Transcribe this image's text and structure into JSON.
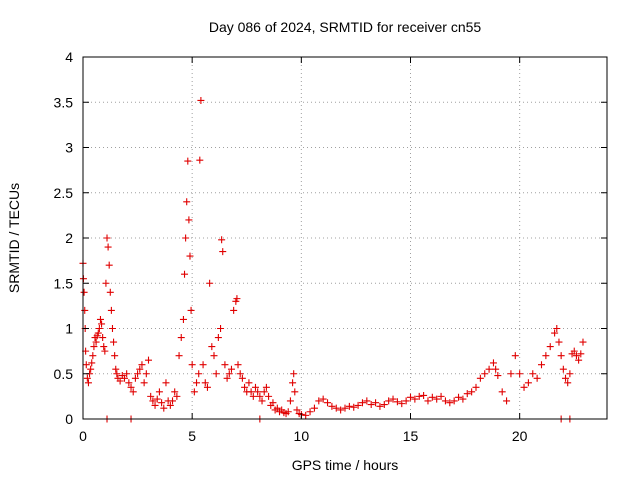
{
  "chart_data": {
    "type": "scatter",
    "title": "Day 086 of 2024, SRMTID for receiver cn55",
    "xlabel": "GPS time / hours",
    "ylabel": "SRMTID / TECUs",
    "xlim": [
      0,
      24
    ],
    "ylim": [
      0,
      4
    ],
    "xticks": [
      0,
      5,
      10,
      15,
      20
    ],
    "xtick_labels": [
      "0",
      "5",
      "10",
      "15",
      "20"
    ],
    "yticks": [
      0,
      0.5,
      1,
      1.5,
      2,
      2.5,
      3,
      3.5,
      4
    ],
    "ytick_labels": [
      "0",
      "0.5",
      "1",
      "1.5",
      "2",
      "2.5",
      "3",
      "3.5",
      "4"
    ],
    "grid": true,
    "marker": "+",
    "color": "#e00000",
    "series": [
      {
        "name": "SRMTID",
        "x": [
          0.0,
          0.02,
          0.05,
          0.08,
          0.1,
          0.12,
          0.15,
          0.2,
          0.25,
          0.3,
          0.35,
          0.4,
          0.45,
          0.5,
          0.55,
          0.6,
          0.65,
          0.7,
          0.75,
          0.8,
          0.85,
          0.9,
          0.95,
          1.0,
          1.05,
          1.1,
          1.15,
          1.2,
          1.25,
          1.3,
          1.35,
          1.4,
          1.45,
          1.5,
          1.55,
          1.6,
          1.7,
          1.8,
          1.9,
          2.0,
          2.1,
          2.2,
          2.3,
          2.4,
          2.5,
          2.6,
          2.7,
          2.8,
          2.9,
          3.0,
          3.1,
          3.2,
          3.3,
          3.4,
          3.5,
          3.6,
          3.7,
          3.8,
          3.9,
          4.0,
          4.1,
          4.2,
          4.3,
          4.4,
          4.5,
          4.6,
          4.65,
          4.7,
          4.75,
          4.8,
          4.85,
          4.9,
          4.95,
          5.0,
          5.1,
          5.2,
          5.3,
          5.35,
          5.4,
          5.5,
          5.6,
          5.7,
          5.8,
          5.9,
          6.0,
          6.1,
          6.2,
          6.3,
          6.35,
          6.4,
          6.5,
          6.6,
          6.7,
          6.8,
          6.9,
          7.0,
          7.05,
          7.1,
          7.2,
          7.3,
          7.4,
          7.5,
          7.6,
          7.7,
          7.8,
          7.9,
          8.0,
          8.1,
          8.2,
          8.3,
          8.4,
          8.5,
          8.6,
          8.7,
          8.8,
          8.9,
          9.0,
          9.1,
          9.2,
          9.3,
          9.4,
          9.5,
          9.6,
          9.65,
          9.7,
          9.8,
          9.9,
          10.0,
          10.2,
          10.4,
          10.6,
          10.8,
          11.0,
          11.2,
          11.4,
          11.6,
          11.8,
          12.0,
          12.2,
          12.4,
          12.6,
          12.8,
          13.0,
          13.2,
          13.4,
          13.6,
          13.8,
          14.0,
          14.2,
          14.4,
          14.6,
          14.8,
          15.0,
          15.2,
          15.4,
          15.6,
          15.8,
          16.0,
          16.2,
          16.4,
          16.6,
          16.8,
          17.0,
          17.2,
          17.4,
          17.6,
          17.8,
          18.0,
          18.2,
          18.4,
          18.6,
          18.8,
          18.9,
          19.0,
          19.2,
          19.4,
          19.6,
          19.8,
          20.0,
          20.2,
          20.4,
          20.6,
          20.8,
          21.0,
          21.2,
          21.4,
          21.6,
          21.7,
          21.8,
          21.9,
          22.0,
          22.1,
          22.2,
          22.3,
          22.4,
          22.5,
          22.6,
          22.7,
          22.8,
          22.9,
          1.1,
          2.2,
          8.1,
          21.9,
          22.3
        ],
        "y": [
          1.72,
          1.55,
          1.4,
          1.2,
          1.0,
          0.75,
          0.6,
          0.45,
          0.4,
          0.5,
          0.55,
          0.62,
          0.7,
          0.8,
          0.9,
          0.85,
          0.92,
          0.95,
          1.0,
          1.1,
          1.05,
          0.9,
          0.8,
          0.75,
          1.5,
          2.0,
          1.9,
          1.7,
          1.4,
          1.2,
          1.0,
          0.85,
          0.7,
          0.55,
          0.5,
          0.45,
          0.42,
          0.48,
          0.45,
          0.5,
          0.4,
          0.35,
          0.3,
          0.45,
          0.5,
          0.55,
          0.6,
          0.4,
          0.5,
          0.65,
          0.25,
          0.2,
          0.15,
          0.22,
          0.3,
          0.18,
          0.12,
          0.4,
          0.2,
          0.15,
          0.2,
          0.3,
          0.25,
          0.7,
          0.9,
          1.1,
          1.6,
          2.0,
          2.4,
          2.85,
          2.2,
          1.8,
          1.2,
          0.6,
          0.3,
          0.4,
          0.5,
          2.86,
          3.52,
          0.6,
          0.4,
          0.35,
          1.5,
          0.8,
          0.7,
          0.5,
          0.9,
          1.0,
          1.98,
          1.85,
          0.6,
          0.45,
          0.5,
          0.55,
          1.2,
          1.3,
          1.33,
          0.6,
          0.5,
          0.45,
          0.35,
          0.3,
          0.4,
          0.3,
          0.25,
          0.35,
          0.3,
          0.25,
          0.2,
          0.3,
          0.35,
          0.25,
          0.15,
          0.18,
          0.1,
          0.12,
          0.08,
          0.1,
          0.07,
          0.06,
          0.08,
          0.2,
          0.4,
          0.5,
          0.3,
          0.1,
          0.06,
          0.05,
          0.04,
          0.08,
          0.12,
          0.2,
          0.22,
          0.18,
          0.14,
          0.12,
          0.1,
          0.12,
          0.14,
          0.13,
          0.15,
          0.18,
          0.2,
          0.16,
          0.18,
          0.14,
          0.16,
          0.2,
          0.22,
          0.19,
          0.17,
          0.2,
          0.24,
          0.22,
          0.25,
          0.26,
          0.2,
          0.24,
          0.22,
          0.25,
          0.2,
          0.18,
          0.2,
          0.24,
          0.22,
          0.28,
          0.3,
          0.35,
          0.45,
          0.5,
          0.55,
          0.62,
          0.55,
          0.48,
          0.3,
          0.2,
          0.5,
          0.7,
          0.5,
          0.35,
          0.4,
          0.5,
          0.45,
          0.6,
          0.7,
          0.8,
          0.95,
          1.0,
          0.85,
          0.7,
          0.55,
          0.45,
          0.4,
          0.5,
          0.72,
          0.75,
          0.7,
          0.65,
          0.72,
          0.85,
          0.0,
          0.0,
          0.0,
          0.0,
          0.0
        ]
      }
    ]
  }
}
